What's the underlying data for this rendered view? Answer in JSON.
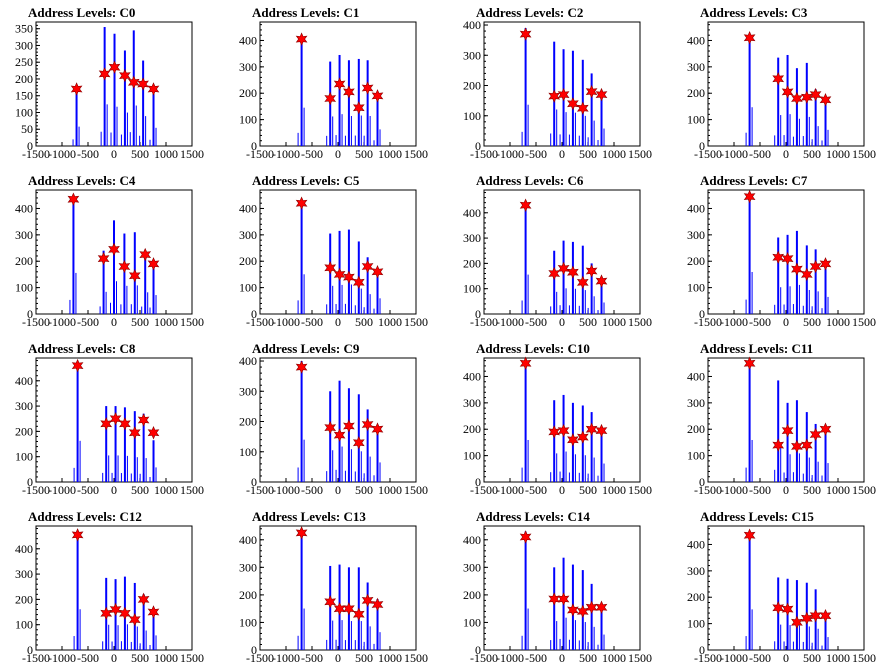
{
  "colors": {
    "bar": "#0000ff",
    "marker": "#ff0000",
    "marker_edge": "#8b0000",
    "axis": "#000000"
  },
  "chart_data": [
    {
      "type": "bar",
      "title": "Address Levels: C0",
      "xlim": [
        -1500,
        1500
      ],
      "ylim": [
        0,
        370
      ],
      "xticks": [
        -1500,
        -1000,
        -500,
        0,
        500,
        1000,
        1500
      ],
      "yticks": [
        0,
        50,
        100,
        150,
        200,
        250,
        300,
        350
      ],
      "peaks": [
        {
          "x": -720,
          "height": 165,
          "marker": 170
        },
        {
          "x": -180,
          "height": 355,
          "marker": 215
        },
        {
          "x": 10,
          "height": 335,
          "marker": 235
        },
        {
          "x": 210,
          "height": 285,
          "marker": 210
        },
        {
          "x": 380,
          "height": 345,
          "marker": 190
        },
        {
          "x": 560,
          "height": 255,
          "marker": 185
        },
        {
          "x": 760,
          "height": 155,
          "marker": 170
        }
      ]
    },
    {
      "type": "bar",
      "title": "Address Levels: C1",
      "xlim": [
        -1500,
        1500
      ],
      "ylim": [
        0,
        470
      ],
      "xticks": [
        -1500,
        -1000,
        -500,
        0,
        500,
        1000,
        1500
      ],
      "yticks": [
        0,
        100,
        200,
        300,
        400
      ],
      "peaks": [
        {
          "x": -700,
          "height": 415,
          "marker": 405
        },
        {
          "x": -150,
          "height": 320,
          "marker": 180
        },
        {
          "x": 30,
          "height": 345,
          "marker": 235
        },
        {
          "x": 210,
          "height": 325,
          "marker": 205
        },
        {
          "x": 400,
          "height": 330,
          "marker": 145
        },
        {
          "x": 570,
          "height": 325,
          "marker": 220
        },
        {
          "x": 760,
          "height": 180,
          "marker": 190
        }
      ]
    },
    {
      "type": "bar",
      "title": "Address Levels: C2",
      "xlim": [
        -1500,
        1500
      ],
      "ylim": [
        0,
        410
      ],
      "xticks": [
        -1500,
        -1000,
        -500,
        0,
        500,
        1000,
        1500
      ],
      "yticks": [
        0,
        100,
        200,
        300,
        400
      ],
      "peaks": [
        {
          "x": -700,
          "height": 390,
          "marker": 370
        },
        {
          "x": -150,
          "height": 345,
          "marker": 165
        },
        {
          "x": 30,
          "height": 320,
          "marker": 170
        },
        {
          "x": 210,
          "height": 315,
          "marker": 140
        },
        {
          "x": 400,
          "height": 285,
          "marker": 125
        },
        {
          "x": 570,
          "height": 240,
          "marker": 180
        },
        {
          "x": 760,
          "height": 165,
          "marker": 170
        }
      ]
    },
    {
      "type": "bar",
      "title": "Address Levels: C3",
      "xlim": [
        -1500,
        1500
      ],
      "ylim": [
        0,
        470
      ],
      "xticks": [
        -1500,
        -1000,
        -500,
        0,
        500,
        1000,
        1500
      ],
      "yticks": [
        0,
        100,
        200,
        300,
        400
      ],
      "peaks": [
        {
          "x": -700,
          "height": 420,
          "marker": 410
        },
        {
          "x": -150,
          "height": 335,
          "marker": 255
        },
        {
          "x": 30,
          "height": 345,
          "marker": 205
        },
        {
          "x": 210,
          "height": 295,
          "marker": 180
        },
        {
          "x": 400,
          "height": 315,
          "marker": 185
        },
        {
          "x": 570,
          "height": 215,
          "marker": 195
        },
        {
          "x": 760,
          "height": 175,
          "marker": 175
        }
      ]
    },
    {
      "type": "bar",
      "title": "Address Levels: C4",
      "xlim": [
        -1500,
        1500
      ],
      "ylim": [
        0,
        470
      ],
      "xticks": [
        -1500,
        -1000,
        -500,
        0,
        500,
        1000,
        1500
      ],
      "yticks": [
        0,
        100,
        200,
        300,
        400
      ],
      "peaks": [
        {
          "x": -780,
          "height": 445,
          "marker": 435
        },
        {
          "x": -200,
          "height": 240,
          "marker": 210
        },
        {
          "x": 0,
          "height": 355,
          "marker": 245
        },
        {
          "x": 200,
          "height": 305,
          "marker": 180
        },
        {
          "x": 400,
          "height": 310,
          "marker": 145
        },
        {
          "x": 600,
          "height": 235,
          "marker": 225
        },
        {
          "x": 760,
          "height": 205,
          "marker": 190
        }
      ]
    },
    {
      "type": "bar",
      "title": "Address Levels: C5",
      "xlim": [
        -1500,
        1500
      ],
      "ylim": [
        0,
        470
      ],
      "xticks": [
        -1500,
        -1000,
        -500,
        0,
        500,
        1000,
        1500
      ],
      "yticks": [
        0,
        100,
        200,
        300,
        400
      ],
      "peaks": [
        {
          "x": -700,
          "height": 430,
          "marker": 420
        },
        {
          "x": -150,
          "height": 305,
          "marker": 175
        },
        {
          "x": 30,
          "height": 315,
          "marker": 150
        },
        {
          "x": 210,
          "height": 320,
          "marker": 140
        },
        {
          "x": 400,
          "height": 275,
          "marker": 120
        },
        {
          "x": 570,
          "height": 215,
          "marker": 180
        },
        {
          "x": 760,
          "height": 170,
          "marker": 160
        }
      ]
    },
    {
      "type": "bar",
      "title": "Address Levels: C6",
      "xlim": [
        -1500,
        1500
      ],
      "ylim": [
        0,
        490
      ],
      "xticks": [
        -1500,
        -1000,
        -500,
        0,
        500,
        1000,
        1500
      ],
      "yticks": [
        0,
        100,
        200,
        300,
        400
      ],
      "peaks": [
        {
          "x": -700,
          "height": 445,
          "marker": 430
        },
        {
          "x": -150,
          "height": 250,
          "marker": 160
        },
        {
          "x": 30,
          "height": 290,
          "marker": 180
        },
        {
          "x": 210,
          "height": 285,
          "marker": 165
        },
        {
          "x": 400,
          "height": 270,
          "marker": 125
        },
        {
          "x": 570,
          "height": 200,
          "marker": 170
        },
        {
          "x": 760,
          "height": 130,
          "marker": 130
        }
      ]
    },
    {
      "type": "bar",
      "title": "Address Levels: C7",
      "xlim": [
        -1500,
        1500
      ],
      "ylim": [
        0,
        470
      ],
      "xticks": [
        -1500,
        -1000,
        -500,
        0,
        500,
        1000,
        1500
      ],
      "yticks": [
        0,
        100,
        200,
        300,
        400
      ],
      "peaks": [
        {
          "x": -700,
          "height": 455,
          "marker": 445
        },
        {
          "x": -150,
          "height": 290,
          "marker": 215
        },
        {
          "x": 30,
          "height": 300,
          "marker": 210
        },
        {
          "x": 210,
          "height": 315,
          "marker": 170
        },
        {
          "x": 400,
          "height": 260,
          "marker": 150
        },
        {
          "x": 570,
          "height": 245,
          "marker": 180
        },
        {
          "x": 760,
          "height": 185,
          "marker": 190
        }
      ]
    },
    {
      "type": "bar",
      "title": "Address Levels: C8",
      "xlim": [
        -1500,
        1500
      ],
      "ylim": [
        0,
        490
      ],
      "xticks": [
        -1500,
        -1000,
        -500,
        0,
        500,
        1000,
        1500
      ],
      "yticks": [
        0,
        100,
        200,
        300,
        400
      ],
      "peaks": [
        {
          "x": -700,
          "height": 465,
          "marker": 460
        },
        {
          "x": -150,
          "height": 300,
          "marker": 230
        },
        {
          "x": 30,
          "height": 300,
          "marker": 250
        },
        {
          "x": 210,
          "height": 295,
          "marker": 230
        },
        {
          "x": 400,
          "height": 280,
          "marker": 195
        },
        {
          "x": 570,
          "height": 270,
          "marker": 245
        },
        {
          "x": 760,
          "height": 165,
          "marker": 195
        }
      ]
    },
    {
      "type": "bar",
      "title": "Address Levels: C9",
      "xlim": [
        -1500,
        1500
      ],
      "ylim": [
        0,
        410
      ],
      "xticks": [
        -1500,
        -1000,
        -500,
        0,
        500,
        1000,
        1500
      ],
      "yticks": [
        0,
        100,
        200,
        300,
        400
      ],
      "peaks": [
        {
          "x": -700,
          "height": 400,
          "marker": 380
        },
        {
          "x": -150,
          "height": 300,
          "marker": 180
        },
        {
          "x": 30,
          "height": 335,
          "marker": 155
        },
        {
          "x": 210,
          "height": 310,
          "marker": 185
        },
        {
          "x": 400,
          "height": 290,
          "marker": 130
        },
        {
          "x": 570,
          "height": 240,
          "marker": 190
        },
        {
          "x": 760,
          "height": 185,
          "marker": 175
        }
      ]
    },
    {
      "type": "bar",
      "title": "Address Levels: C10",
      "xlim": [
        -1500,
        1500
      ],
      "ylim": [
        0,
        470
      ],
      "xticks": [
        -1500,
        -1000,
        -500,
        0,
        500,
        1000,
        1500
      ],
      "yticks": [
        0,
        100,
        200,
        300,
        400
      ],
      "peaks": [
        {
          "x": -700,
          "height": 455,
          "marker": 450
        },
        {
          "x": -150,
          "height": 310,
          "marker": 190
        },
        {
          "x": 30,
          "height": 330,
          "marker": 195
        },
        {
          "x": 210,
          "height": 300,
          "marker": 160
        },
        {
          "x": 400,
          "height": 290,
          "marker": 170
        },
        {
          "x": 570,
          "height": 265,
          "marker": 200
        },
        {
          "x": 760,
          "height": 200,
          "marker": 195
        }
      ]
    },
    {
      "type": "bar",
      "title": "Address Levels: C11",
      "xlim": [
        -1500,
        1500
      ],
      "ylim": [
        0,
        470
      ],
      "xticks": [
        -1500,
        -1000,
        -500,
        0,
        500,
        1000,
        1500
      ],
      "yticks": [
        0,
        100,
        200,
        300,
        400
      ],
      "peaks": [
        {
          "x": -700,
          "height": 455,
          "marker": 450
        },
        {
          "x": -150,
          "height": 385,
          "marker": 140
        },
        {
          "x": 30,
          "height": 300,
          "marker": 195
        },
        {
          "x": 210,
          "height": 310,
          "marker": 135
        },
        {
          "x": 400,
          "height": 265,
          "marker": 140
        },
        {
          "x": 570,
          "height": 220,
          "marker": 180
        },
        {
          "x": 760,
          "height": 205,
          "marker": 200
        }
      ]
    },
    {
      "type": "bar",
      "title": "Address Levels: C12",
      "xlim": [
        -1500,
        1500
      ],
      "ylim": [
        0,
        490
      ],
      "xticks": [
        -1500,
        -1000,
        -500,
        0,
        500,
        1000,
        1500
      ],
      "yticks": [
        0,
        100,
        200,
        300,
        400
      ],
      "peaks": [
        {
          "x": -700,
          "height": 460,
          "marker": 455
        },
        {
          "x": -150,
          "height": 285,
          "marker": 145
        },
        {
          "x": 30,
          "height": 280,
          "marker": 160
        },
        {
          "x": 210,
          "height": 290,
          "marker": 145
        },
        {
          "x": 400,
          "height": 265,
          "marker": 120
        },
        {
          "x": 570,
          "height": 220,
          "marker": 200
        },
        {
          "x": 760,
          "height": 165,
          "marker": 150
        }
      ]
    },
    {
      "type": "bar",
      "title": "Address Levels: C13",
      "xlim": [
        -1500,
        1500
      ],
      "ylim": [
        0,
        450
      ],
      "xticks": [
        -1500,
        -1000,
        -500,
        0,
        500,
        1000,
        1500
      ],
      "yticks": [
        0,
        100,
        200,
        300,
        400
      ],
      "peaks": [
        {
          "x": -700,
          "height": 430,
          "marker": 425
        },
        {
          "x": -150,
          "height": 305,
          "marker": 175
        },
        {
          "x": 30,
          "height": 310,
          "marker": 150
        },
        {
          "x": 210,
          "height": 300,
          "marker": 150
        },
        {
          "x": 400,
          "height": 300,
          "marker": 130
        },
        {
          "x": 570,
          "height": 245,
          "marker": 180
        },
        {
          "x": 760,
          "height": 185,
          "marker": 165
        }
      ]
    },
    {
      "type": "bar",
      "title": "Address Levels: C14",
      "xlim": [
        -1500,
        1500
      ],
      "ylim": [
        0,
        450
      ],
      "xticks": [
        -1500,
        -1000,
        -500,
        0,
        500,
        1000,
        1500
      ],
      "yticks": [
        0,
        100,
        200,
        300,
        400
      ],
      "peaks": [
        {
          "x": -700,
          "height": 430,
          "marker": 410
        },
        {
          "x": -150,
          "height": 300,
          "marker": 185
        },
        {
          "x": 30,
          "height": 335,
          "marker": 185
        },
        {
          "x": 210,
          "height": 310,
          "marker": 145
        },
        {
          "x": 400,
          "height": 290,
          "marker": 140
        },
        {
          "x": 570,
          "height": 240,
          "marker": 155
        },
        {
          "x": 760,
          "height": 160,
          "marker": 155
        }
      ]
    },
    {
      "type": "bar",
      "title": "Address Levels: C15",
      "xlim": [
        -1500,
        1500
      ],
      "ylim": [
        0,
        470
      ],
      "xticks": [
        -1500,
        -1000,
        -500,
        0,
        500,
        1000,
        1500
      ],
      "yticks": [
        0,
        100,
        200,
        300,
        400
      ],
      "peaks": [
        {
          "x": -700,
          "height": 440,
          "marker": 435
        },
        {
          "x": -150,
          "height": 275,
          "marker": 160
        },
        {
          "x": 30,
          "height": 270,
          "marker": 155
        },
        {
          "x": 210,
          "height": 265,
          "marker": 105
        },
        {
          "x": 400,
          "height": 255,
          "marker": 120
        },
        {
          "x": 570,
          "height": 230,
          "marker": 130
        },
        {
          "x": 760,
          "height": 140,
          "marker": 130
        }
      ]
    }
  ]
}
